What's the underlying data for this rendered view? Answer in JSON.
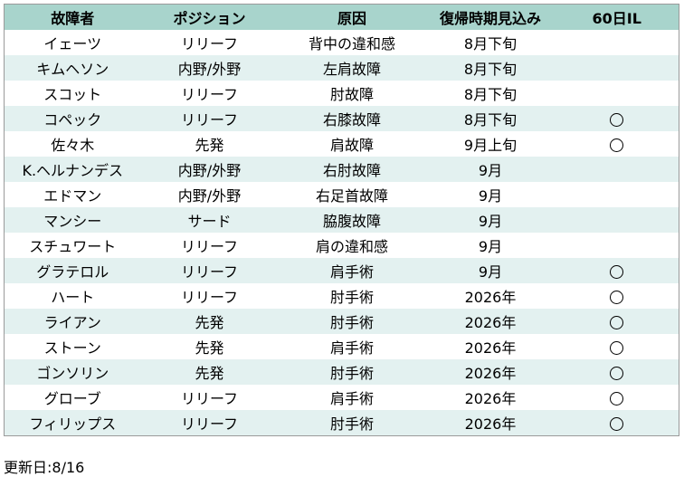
{
  "headers": [
    "故障者",
    "ポジション",
    "原因",
    "復帰時期見込み",
    "60日IL"
  ],
  "rows": [
    {
      "name": "イェーツ",
      "position": "リリーフ",
      "cause": "背中の違和感",
      "return": "8月下旬",
      "il60": false
    },
    {
      "name": "キムヘソン",
      "position": "内野/外野",
      "cause": "左肩故障",
      "return": "8月下旬",
      "il60": false
    },
    {
      "name": "スコット",
      "position": "リリーフ",
      "cause": "肘故障",
      "return": "8月下旬",
      "il60": false
    },
    {
      "name": "コペック",
      "position": "リリーフ",
      "cause": "右膝故障",
      "return": "8月下旬",
      "il60": true
    },
    {
      "name": "佐々木",
      "position": "先発",
      "cause": "肩故障",
      "return": "9月上旬",
      "il60": true
    },
    {
      "name": "K.ヘルナンデス",
      "position": "内野/外野",
      "cause": "右肘故障",
      "return": "9月",
      "il60": false
    },
    {
      "name": "エドマン",
      "position": "内野/外野",
      "cause": "右足首故障",
      "return": "9月",
      "il60": false
    },
    {
      "name": "マンシー",
      "position": "サード",
      "cause": "脇腹故障",
      "return": "9月",
      "il60": false
    },
    {
      "name": "スチュワート",
      "position": "リリーフ",
      "cause": "肩の違和感",
      "return": "9月",
      "il60": false
    },
    {
      "name": "グラテロル",
      "position": "リリーフ",
      "cause": "肩手術",
      "return": "9月",
      "il60": true
    },
    {
      "name": "ハート",
      "position": "リリーフ",
      "cause": "肘手術",
      "return": "2026年",
      "il60": true
    },
    {
      "name": "ライアン",
      "position": "先発",
      "cause": "肘手術",
      "return": "2026年",
      "il60": true
    },
    {
      "name": "ストーン",
      "position": "先発",
      "cause": "肩手術",
      "return": "2026年",
      "il60": true
    },
    {
      "name": "ゴンソリン",
      "position": "先発",
      "cause": "肘手術",
      "return": "2026年",
      "il60": true
    },
    {
      "name": "グローブ",
      "position": "リリーフ",
      "cause": "肩手術",
      "return": "2026年",
      "il60": true
    },
    {
      "name": "フィリップス",
      "position": "リリーフ",
      "cause": "肘手術",
      "return": "2026年",
      "il60": true
    }
  ],
  "il60_mark_icon": "circle-mark-icon",
  "colors": {
    "header_bg": "#a8d4cc",
    "stripe_bg": "#e3f1f0"
  },
  "updated": "更新日:8/16"
}
